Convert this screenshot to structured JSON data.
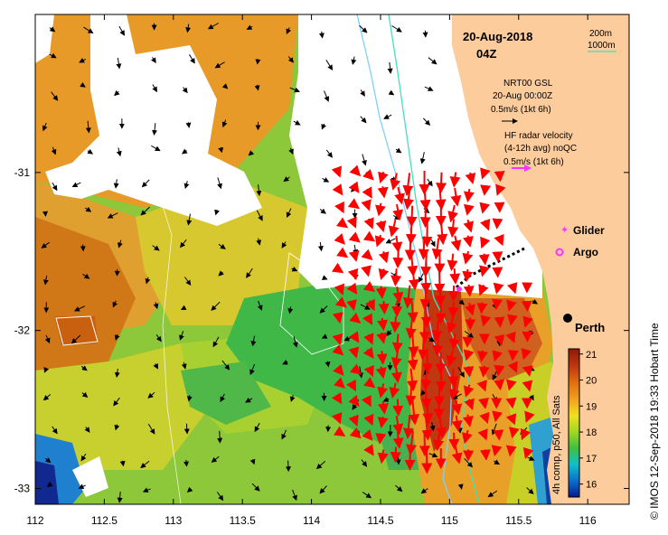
{
  "map": {
    "date_label": "20-Aug-2018",
    "time_label": "04Z",
    "land_color": "#fccc9c",
    "nodata_color": "#ffffff",
    "isobath_legend": [
      {
        "label": "200m",
        "color": "#7fd0ff"
      },
      {
        "label": "1000m",
        "color": "#40e0c0"
      }
    ],
    "model_legend": {
      "line1": "NRT00 GSL",
      "line2": "20-Aug 00:00Z",
      "line3": "0.5m/s (1kt 6h)",
      "arrow_color": "#000000"
    },
    "radar_legend": {
      "line1": "HF radar velocity",
      "line2": "(4-12h avg) noQC",
      "line3": "0.5m/s (1kt 6h)",
      "arrow_color": "#ff33ff"
    },
    "glider": {
      "label": "Glider",
      "color": "#ff33ff"
    },
    "argo": {
      "label": "Argo",
      "color": "#ff33ff"
    },
    "city": {
      "label": "Perth",
      "lon": 115.86,
      "lat": -31.95
    },
    "x_ticks": [
      "112",
      "112.5",
      "113",
      "113.5",
      "114",
      "114.5",
      "115",
      "115.5",
      "116"
    ],
    "y_ticks": [
      "-31",
      "-32",
      "-33"
    ],
    "lon_range": [
      112,
      116.3
    ],
    "lat_range": [
      -30.0,
      -33.1
    ],
    "colorbar": {
      "label": "4h comp, p50, All Sats",
      "ticks": [
        "21",
        "20",
        "19",
        "18",
        "17",
        "16"
      ],
      "range": [
        15.5,
        21.2
      ],
      "stops": [
        "#0a1a8c",
        "#0a70d0",
        "#10c0c8",
        "#40c040",
        "#a0d820",
        "#f0e020",
        "#f0a020",
        "#e07010",
        "#c03810",
        "#901808"
      ]
    },
    "credit": "© IMOS 12-Sep-2018 19:33 Hobart Time"
  }
}
